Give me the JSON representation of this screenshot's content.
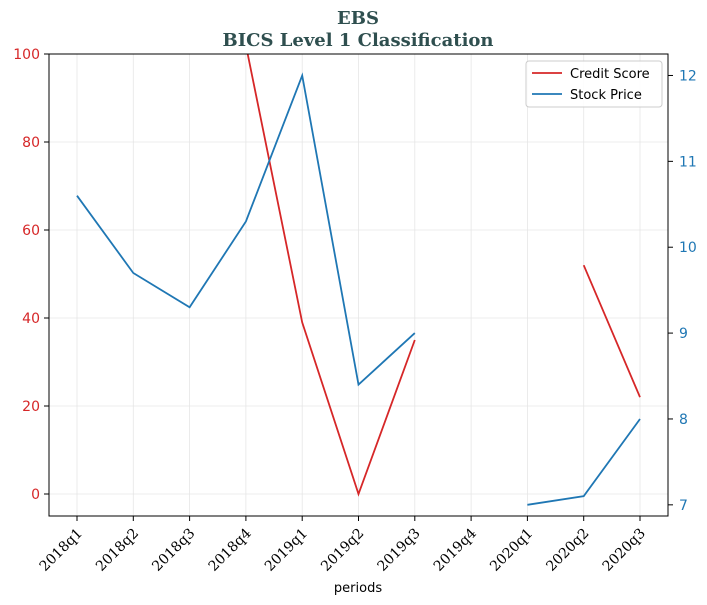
{
  "chart_data": {
    "type": "line",
    "title": "EBS",
    "subtitle": "BICS Level 1 Classification",
    "xlabel": "periods",
    "categories": [
      "2018q1",
      "2018q2",
      "2018q3",
      "2018q4",
      "2019q1",
      "2019q2",
      "2019q3",
      "2019q4",
      "2020q1",
      "2020q2",
      "2020q3"
    ],
    "left_axis": {
      "ylim": [
        -5,
        100
      ],
      "ticks": [
        0,
        20,
        40,
        60,
        80,
        100
      ],
      "color": "#d62728"
    },
    "right_axis": {
      "ylim": [
        6.87,
        12.25
      ],
      "ticks": [
        7,
        8,
        9,
        10,
        11,
        12
      ],
      "color": "#1f77b4"
    },
    "series": [
      {
        "name": "Credit Score",
        "axis": "left",
        "color": "#d62728",
        "values": [
          null,
          null,
          null,
          102,
          39,
          0,
          35,
          null,
          null,
          52,
          22
        ]
      },
      {
        "name": "Stock Price",
        "axis": "right",
        "color": "#1f77b4",
        "values": [
          10.6,
          9.7,
          9.3,
          10.3,
          12.0,
          8.4,
          9.0,
          null,
          7.0,
          7.1,
          8.0
        ]
      }
    ],
    "grid": true,
    "legend_position": "top-right"
  }
}
